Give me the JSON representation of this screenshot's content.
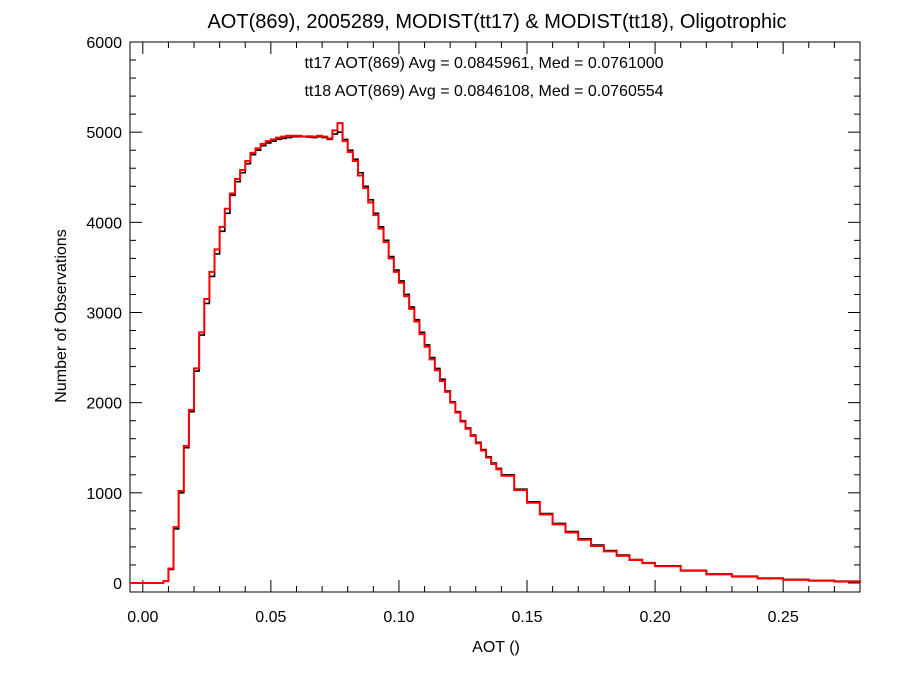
{
  "chart_data": {
    "type": "line",
    "title": "AOT(869), 2005289, MODIST(tt17) & MODIST(tt18), Oligotrophic",
    "xlabel": "AOT ()",
    "ylabel": "Number of Observations",
    "xlim": [
      -0.005,
      0.28
    ],
    "ylim": [
      -100,
      6000
    ],
    "x_ticks": [
      0.0,
      0.05,
      0.1,
      0.15,
      0.2,
      0.25
    ],
    "x_tick_labels": [
      "0.00",
      "0.05",
      "0.10",
      "0.15",
      "0.20",
      "0.25"
    ],
    "y_ticks": [
      0,
      1000,
      2000,
      3000,
      4000,
      5000,
      6000
    ],
    "y_tick_labels": [
      "0",
      "1000",
      "2000",
      "3000",
      "4000",
      "5000",
      "6000"
    ],
    "grid": false,
    "step_style": "histogram-step",
    "annotations": [
      {
        "text": "tt17 AOT(869) Avg = 0.0845961, Med = 0.0761000",
        "color": "#000000"
      },
      {
        "text": "tt18 AOT(869) Avg = 0.0846108, Med = 0.0760554",
        "color": "#ff0000"
      }
    ],
    "series": [
      {
        "color": "#000000",
        "x": [
          -0.005,
          0.0,
          0.005,
          0.008,
          0.01,
          0.012,
          0.014,
          0.016,
          0.018,
          0.02,
          0.022,
          0.024,
          0.026,
          0.028,
          0.03,
          0.032,
          0.034,
          0.036,
          0.038,
          0.04,
          0.042,
          0.044,
          0.046,
          0.048,
          0.05,
          0.052,
          0.054,
          0.056,
          0.058,
          0.06,
          0.062,
          0.064,
          0.066,
          0.068,
          0.07,
          0.072,
          0.074,
          0.076,
          0.078,
          0.08,
          0.082,
          0.084,
          0.086,
          0.088,
          0.09,
          0.092,
          0.094,
          0.096,
          0.098,
          0.1,
          0.102,
          0.104,
          0.106,
          0.108,
          0.11,
          0.112,
          0.114,
          0.116,
          0.118,
          0.12,
          0.122,
          0.124,
          0.126,
          0.128,
          0.13,
          0.132,
          0.134,
          0.136,
          0.138,
          0.14,
          0.145,
          0.15,
          0.155,
          0.16,
          0.165,
          0.17,
          0.175,
          0.18,
          0.185,
          0.19,
          0.195,
          0.2,
          0.21,
          0.22,
          0.23,
          0.24,
          0.25,
          0.26,
          0.27,
          0.28
        ],
        "values": [
          0,
          0,
          0,
          20,
          150,
          600,
          1000,
          1500,
          1900,
          2350,
          2750,
          3100,
          3400,
          3650,
          3900,
          4100,
          4300,
          4450,
          4550,
          4650,
          4750,
          4800,
          4850,
          4880,
          4900,
          4920,
          4930,
          4940,
          4950,
          4950,
          4950,
          4945,
          4940,
          4950,
          4940,
          4920,
          4980,
          5000,
          4920,
          4800,
          4700,
          4550,
          4400,
          4250,
          4100,
          3950,
          3800,
          3620,
          3470,
          3350,
          3200,
          3060,
          2920,
          2780,
          2640,
          2500,
          2380,
          2260,
          2130,
          2010,
          1900,
          1800,
          1720,
          1640,
          1560,
          1480,
          1400,
          1330,
          1270,
          1200,
          1040,
          900,
          770,
          660,
          570,
          490,
          420,
          360,
          310,
          260,
          225,
          190,
          140,
          100,
          75,
          55,
          40,
          28,
          20,
          10
        ]
      },
      {
        "color": "#ff0000",
        "x": [
          -0.005,
          0.0,
          0.005,
          0.008,
          0.01,
          0.012,
          0.014,
          0.016,
          0.018,
          0.02,
          0.022,
          0.024,
          0.026,
          0.028,
          0.03,
          0.032,
          0.034,
          0.036,
          0.038,
          0.04,
          0.042,
          0.044,
          0.046,
          0.048,
          0.05,
          0.052,
          0.054,
          0.056,
          0.058,
          0.06,
          0.062,
          0.064,
          0.066,
          0.068,
          0.07,
          0.072,
          0.074,
          0.076,
          0.078,
          0.08,
          0.082,
          0.084,
          0.086,
          0.088,
          0.09,
          0.092,
          0.094,
          0.096,
          0.098,
          0.1,
          0.102,
          0.104,
          0.106,
          0.108,
          0.11,
          0.112,
          0.114,
          0.116,
          0.118,
          0.12,
          0.122,
          0.124,
          0.126,
          0.128,
          0.13,
          0.132,
          0.134,
          0.136,
          0.138,
          0.14,
          0.145,
          0.15,
          0.155,
          0.16,
          0.165,
          0.17,
          0.175,
          0.18,
          0.185,
          0.19,
          0.195,
          0.2,
          0.21,
          0.22,
          0.23,
          0.24,
          0.25,
          0.26,
          0.27,
          0.28
        ],
        "values": [
          0,
          0,
          0,
          20,
          160,
          620,
          1020,
          1520,
          1920,
          2380,
          2780,
          3150,
          3450,
          3700,
          3950,
          4150,
          4320,
          4480,
          4580,
          4680,
          4770,
          4820,
          4870,
          4900,
          4920,
          4940,
          4950,
          4960,
          4960,
          4960,
          4950,
          4955,
          4950,
          4960,
          4950,
          4930,
          5020,
          5100,
          4900,
          4780,
          4680,
          4520,
          4380,
          4220,
          4080,
          3930,
          3780,
          3600,
          3450,
          3330,
          3180,
          3040,
          2900,
          2760,
          2620,
          2480,
          2360,
          2240,
          2120,
          2000,
          1890,
          1790,
          1710,
          1630,
          1550,
          1470,
          1390,
          1320,
          1260,
          1190,
          1030,
          890,
          760,
          650,
          560,
          480,
          410,
          350,
          300,
          255,
          220,
          185,
          135,
          95,
          70,
          50,
          35,
          25,
          15,
          5
        ]
      }
    ]
  }
}
